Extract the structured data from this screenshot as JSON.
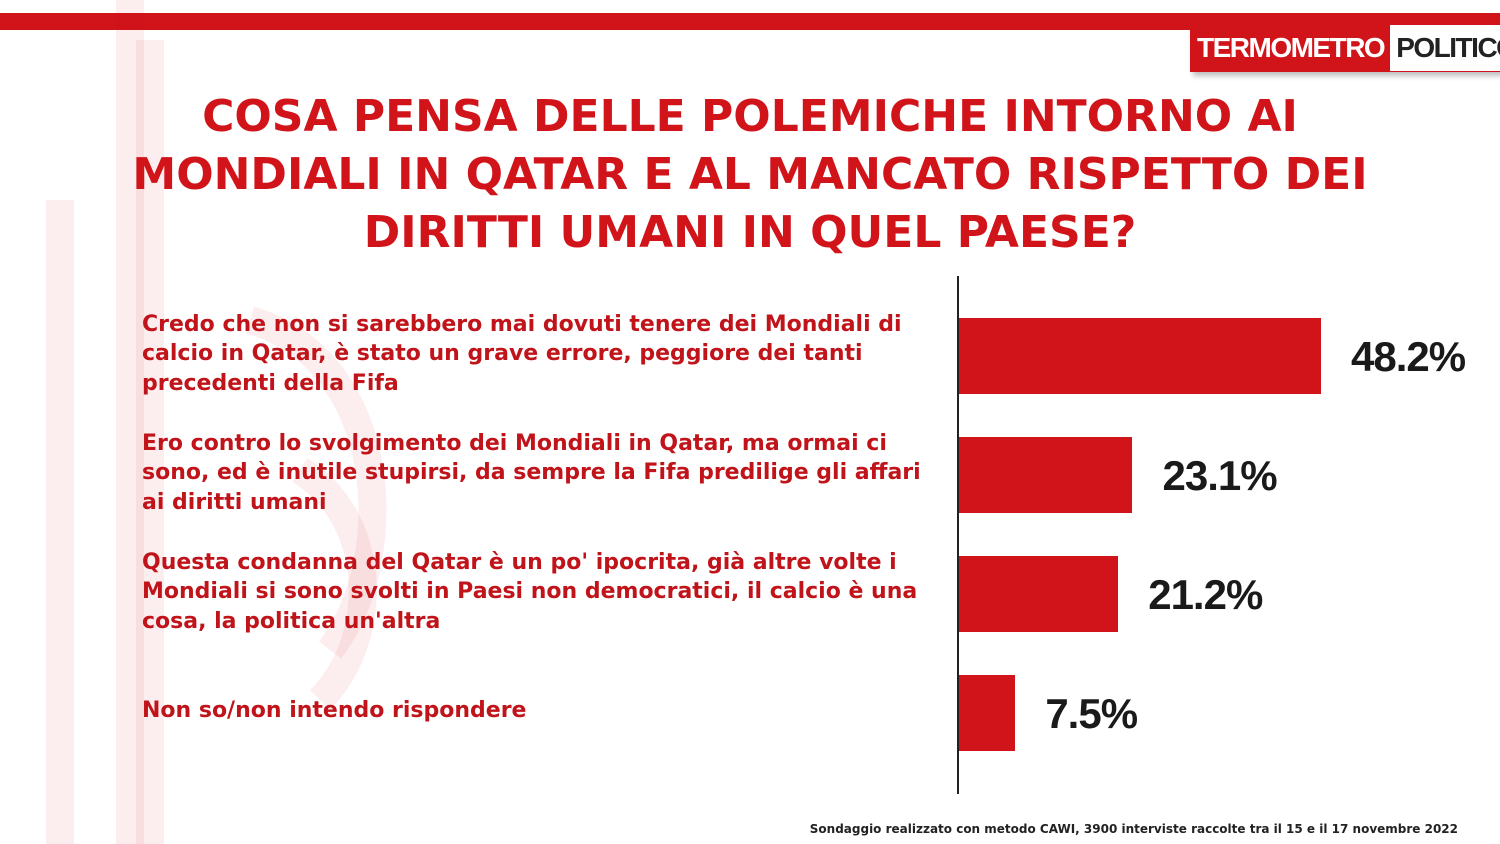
{
  "logo": {
    "left_text": "TERMOMETRO",
    "right_text": "POLITICO"
  },
  "title_lines": [
    "COSA PENSA DELLE POLEMICHE INTORNO AI",
    "MONDIALI IN QATAR E AL MANCATO RISPETTO DEI",
    "DIRITTI UMANI IN QUEL PAESE?"
  ],
  "footnote": "Sondaggio realizzato con metodo CAWI, 3900 interviste raccolte tra il 15 e il 17 novembre 2022",
  "colors": {
    "accent": "#d0141a",
    "text_dark": "#1a1a1a"
  },
  "chart_data": {
    "type": "bar",
    "orientation": "horizontal",
    "title": "COSA PENSA DELLE POLEMICHE INTORNO AI MONDIALI IN QATAR E AL MANCATO RISPETTO DEI DIRITTI UMANI IN QUEL PAESE?",
    "categories": [
      [
        "Credo che non si sarebbero mai dovuti tenere dei Mondiali di",
        "calcio in Qatar, è stato un grave errore, peggiore dei tanti",
        "precedenti della Fifa"
      ],
      [
        "Ero contro lo svolgimento dei Mondiali in Qatar, ma ormai ci",
        "sono, ed è inutile stupirsi, da sempre la Fifa predilige gli affari",
        "ai diritti umani"
      ],
      [
        "Questa condanna del Qatar è un po' ipocrita, già altre volte i",
        "Mondiali si sono svolti in Paesi non democratici, il calcio è una",
        "cosa, la politica un'altra"
      ],
      [
        "Non so/non intendo rispondere"
      ]
    ],
    "values": [
      48.2,
      23.1,
      21.2,
      7.5
    ],
    "value_labels": [
      "48.2%",
      "23.1%",
      "21.2%",
      "7.5%"
    ],
    "unit": "%",
    "xlim": [
      0,
      100
    ],
    "grid": false,
    "legend": "none"
  }
}
